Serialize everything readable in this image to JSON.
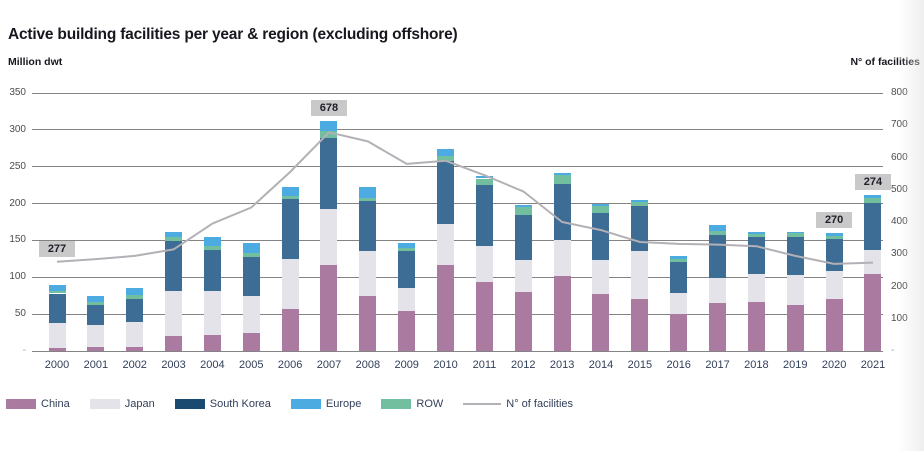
{
  "title": "Active building facilities per year & region (excluding offshore)",
  "left_axis": {
    "unit_label": "Million dwt",
    "max": 350,
    "step": 50,
    "zero_tick_text": "-"
  },
  "right_axis": {
    "unit_label": "N° of facilities",
    "max": 800,
    "step": 100,
    "zero_tick_text": "-"
  },
  "colors": {
    "china": "#aa7aa0",
    "japan": "#e4e3ea",
    "south_korea_bar": "#3d6d95",
    "south_korea_legend": "#1b4a70",
    "europe": "#4cabe0",
    "row": "#72bfa0",
    "facilities_line": "#b3b0b6",
    "gridline": "#848484",
    "callout_bg": "#c9c9c9",
    "callout_text": "#20202a"
  },
  "legend": [
    {
      "label": "China",
      "swatch": "china"
    },
    {
      "label": "Japan",
      "swatch": "japan"
    },
    {
      "label": "South Korea",
      "swatch": "south_korea_legend"
    },
    {
      "label": "Europe",
      "swatch": "europe"
    },
    {
      "label": "ROW",
      "swatch": "row"
    },
    {
      "label": "N° of facilities",
      "swatch": "facilities_line",
      "line": true
    }
  ],
  "chart_data": {
    "type": "bar",
    "subtype": "stacked-bars-with-line-overlay",
    "title": "Active building facilities per year & region (excluding offshore)",
    "xlabel": "",
    "ylabel_left": "Million dwt",
    "ylabel_right": "N° of facilities",
    "ylim_left": [
      0,
      350
    ],
    "ylim_right": [
      0,
      800
    ],
    "grid": true,
    "legend_position": "bottom",
    "categories": [
      2000,
      2001,
      2002,
      2003,
      2004,
      2005,
      2006,
      2007,
      2008,
      2009,
      2010,
      2011,
      2012,
      2013,
      2014,
      2015,
      2016,
      2017,
      2018,
      2019,
      2020,
      2021
    ],
    "stack_order": [
      "China",
      "Japan",
      "South Korea",
      "ROW",
      "Europe"
    ],
    "series": [
      {
        "name": "China",
        "color_key": "china",
        "values": [
          4,
          5,
          6,
          21,
          22,
          25,
          57,
          117,
          74,
          54,
          117,
          94,
          80,
          102,
          77,
          71,
          50,
          65,
          66,
          63,
          70,
          104
        ]
      },
      {
        "name": "Japan",
        "color_key": "japan",
        "values": [
          34,
          30,
          34,
          60,
          60,
          50,
          68,
          76,
          62,
          31,
          55,
          48,
          44,
          48,
          47,
          64,
          29,
          34,
          39,
          40,
          38,
          33
        ]
      },
      {
        "name": "South Korea",
        "color_key": "south_korea_bar",
        "values": [
          40,
          28,
          31,
          68,
          55,
          52,
          81,
          96,
          68,
          51,
          86,
          83,
          61,
          77,
          63,
          62,
          42,
          59,
          50,
          52,
          44,
          64
        ]
      },
      {
        "name": "Europe",
        "color_key": "europe",
        "values": [
          9,
          8,
          9,
          8,
          13,
          14,
          12,
          14,
          15,
          6,
          9,
          4,
          3,
          3,
          2,
          3,
          4,
          8,
          2,
          2,
          4,
          3
        ]
      },
      {
        "name": "ROW",
        "color_key": "row",
        "values": [
          3,
          3,
          5,
          5,
          5,
          6,
          4,
          9,
          4,
          4,
          7,
          9,
          10,
          12,
          10,
          5,
          4,
          5,
          4,
          5,
          4,
          7
        ]
      }
    ],
    "line_series": {
      "name": "N° of facilities",
      "axis": "right",
      "color_key": "facilities_line",
      "values": [
        277,
        285,
        295,
        315,
        395,
        445,
        555,
        678,
        650,
        580,
        590,
        545,
        495,
        400,
        375,
        338,
        332,
        330,
        325,
        295,
        270,
        274
      ]
    },
    "annotations": [
      {
        "year": 2000,
        "text": "277"
      },
      {
        "year": 2007,
        "text": "678"
      },
      {
        "year": 2020,
        "text": "270"
      },
      {
        "year": 2021,
        "text": "274"
      }
    ]
  }
}
